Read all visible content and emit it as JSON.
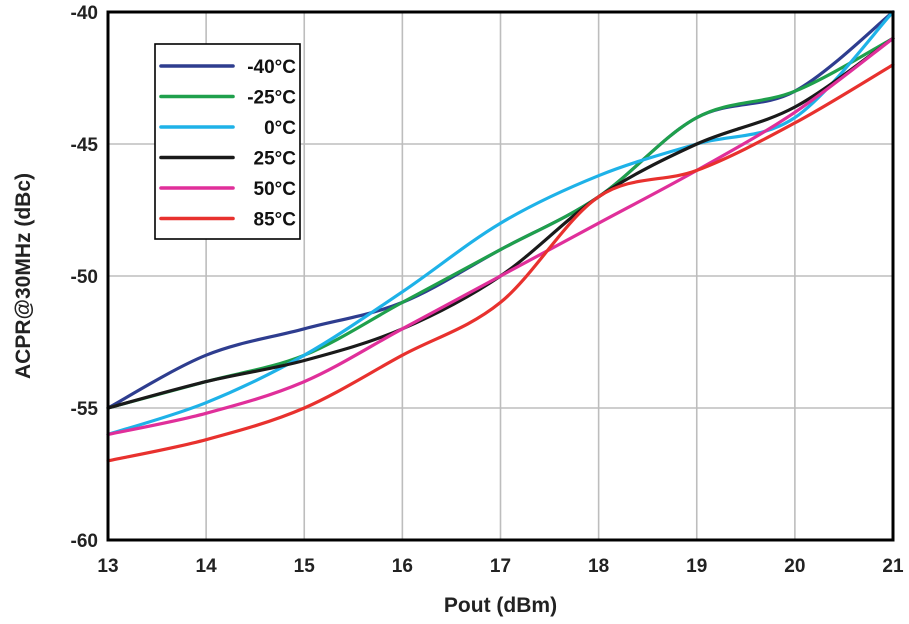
{
  "chart_data": {
    "type": "line",
    "title": "",
    "xlabel": "Pout (dBm)",
    "ylabel": "ACPR@30MHz (dBc)",
    "xlim": [
      13,
      21
    ],
    "ylim": [
      -60,
      -40
    ],
    "xticks": [
      13,
      14,
      15,
      16,
      17,
      18,
      19,
      20,
      21
    ],
    "yticks": [
      -60,
      -55,
      -50,
      -45,
      -40
    ],
    "grid": true,
    "legend_position": "top-left",
    "series": [
      {
        "name": "-40°C",
        "color": "#2e3d8f",
        "x": [
          13,
          14,
          15,
          16,
          17,
          18,
          19,
          20,
          21
        ],
        "y": [
          -55,
          -53,
          -52,
          -51,
          -49,
          -47,
          -44,
          -43,
          -40
        ]
      },
      {
        "name": "-25°C",
        "color": "#1fa04c",
        "x": [
          13,
          14,
          15,
          16,
          17,
          18,
          19,
          20,
          21
        ],
        "y": [
          -55,
          -54,
          -53,
          -51,
          -49,
          -47,
          -44,
          -43,
          -41
        ]
      },
      {
        "name": "0°C",
        "color": "#1eb2e8",
        "x": [
          13,
          14,
          15,
          16,
          17,
          18,
          19,
          20,
          21
        ],
        "y": [
          -56,
          -54.8,
          -53,
          -50.6,
          -48,
          -46.2,
          -45,
          -44,
          -40
        ]
      },
      {
        "name": "25°C",
        "color": "#1a1a1a",
        "x": [
          13,
          14,
          15,
          16,
          17,
          18,
          19,
          20,
          21
        ],
        "y": [
          -55,
          -54,
          -53.2,
          -52,
          -50,
          -47,
          -45,
          -43.6,
          -41
        ]
      },
      {
        "name": "50°C",
        "color": "#e02f9a",
        "x": [
          13,
          14,
          15,
          16,
          17,
          18,
          19,
          20,
          21
        ],
        "y": [
          -56,
          -55.2,
          -54,
          -52,
          -50,
          -48,
          -46,
          -43.8,
          -41
        ]
      },
      {
        "name": "85°C",
        "color": "#e8312e",
        "x": [
          13,
          14,
          15,
          16,
          17,
          18,
          19,
          20,
          21
        ],
        "y": [
          -57,
          -56.2,
          -55,
          -53,
          -51,
          -47,
          -46,
          -44.2,
          -42
        ]
      }
    ]
  }
}
